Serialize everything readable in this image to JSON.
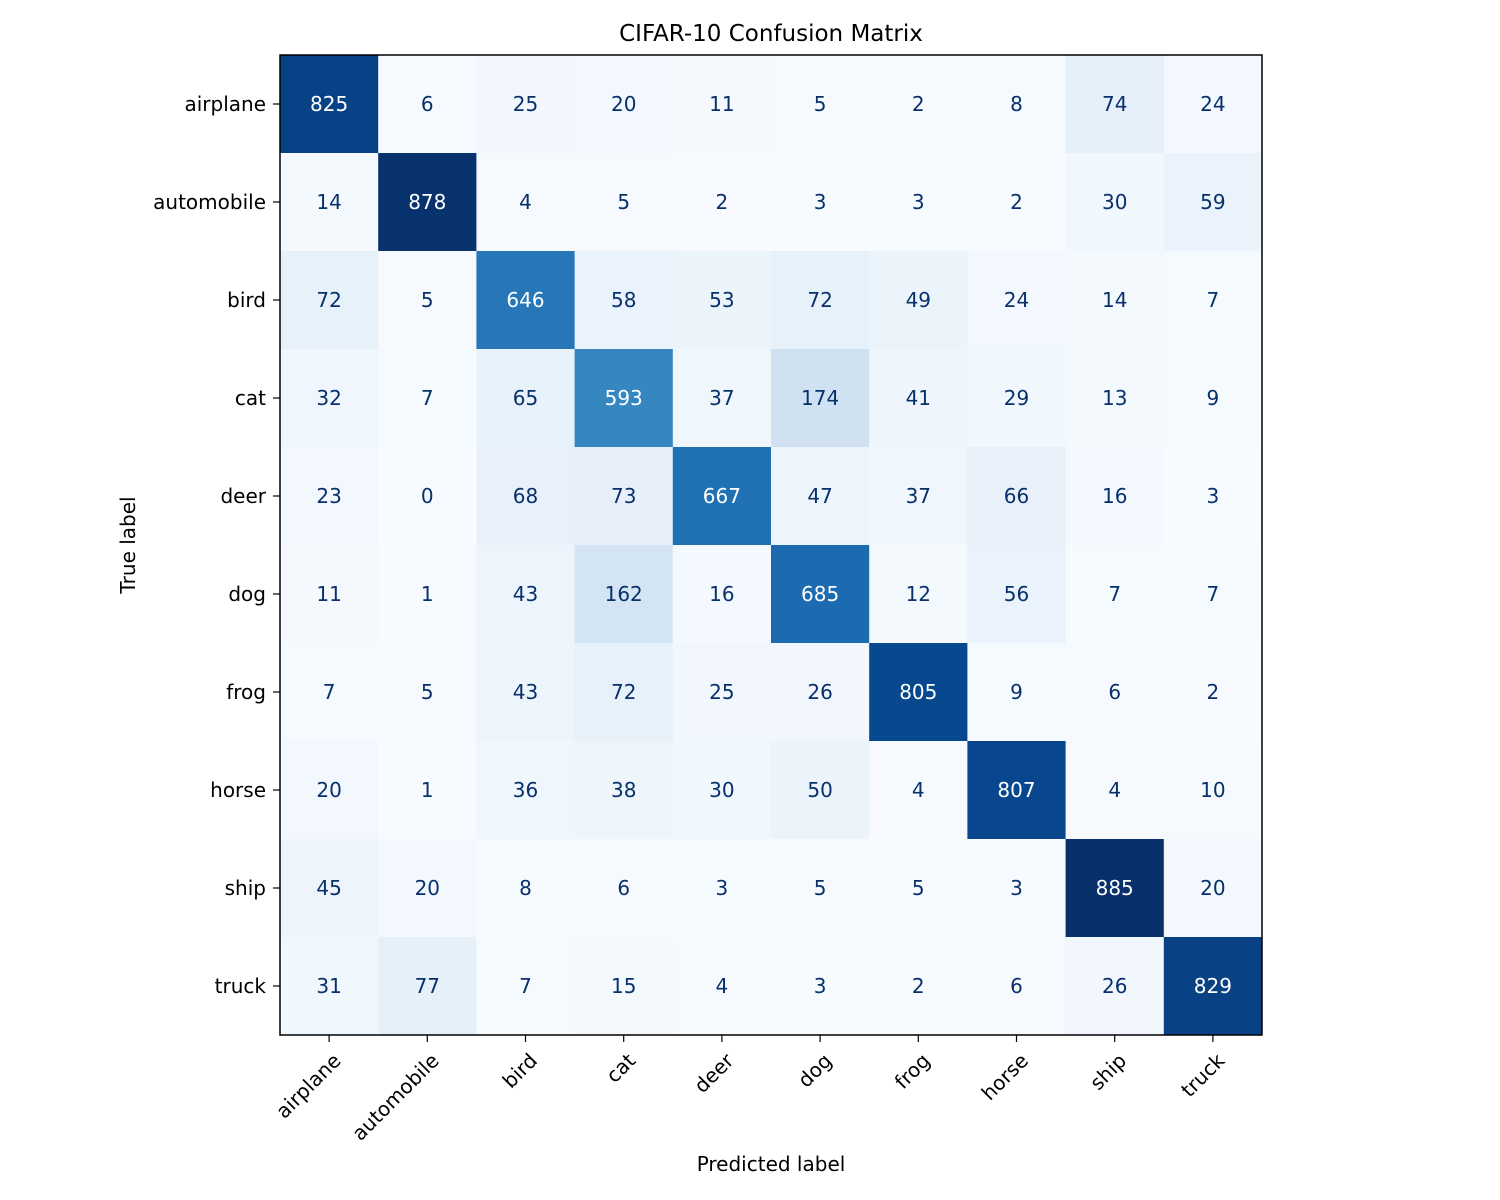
{
  "chart_data": {
    "type": "heatmap",
    "title": "CIFAR-10 Confusion Matrix",
    "xlabel": "Predicted label",
    "ylabel": "True label",
    "x_categories": [
      "airplane",
      "automobile",
      "bird",
      "cat",
      "deer",
      "dog",
      "frog",
      "horse",
      "ship",
      "truck"
    ],
    "y_categories": [
      "airplane",
      "automobile",
      "bird",
      "cat",
      "deer",
      "dog",
      "frog",
      "horse",
      "ship",
      "truck"
    ],
    "values": [
      [
        825,
        6,
        25,
        20,
        11,
        5,
        2,
        8,
        74,
        24
      ],
      [
        14,
        878,
        4,
        5,
        2,
        3,
        3,
        2,
        30,
        59
      ],
      [
        72,
        5,
        646,
        58,
        53,
        72,
        49,
        24,
        14,
        7
      ],
      [
        32,
        7,
        65,
        593,
        37,
        174,
        41,
        29,
        13,
        9
      ],
      [
        23,
        0,
        68,
        73,
        667,
        47,
        37,
        66,
        16,
        3
      ],
      [
        11,
        1,
        43,
        162,
        16,
        685,
        12,
        56,
        7,
        7
      ],
      [
        7,
        5,
        43,
        72,
        25,
        26,
        805,
        9,
        6,
        2
      ],
      [
        20,
        1,
        36,
        38,
        30,
        50,
        4,
        807,
        4,
        10
      ],
      [
        45,
        20,
        8,
        6,
        3,
        5,
        5,
        3,
        885,
        20
      ],
      [
        31,
        77,
        7,
        15,
        4,
        3,
        2,
        6,
        26,
        829
      ]
    ],
    "colormap": "Blues",
    "color_range": [
      0,
      885
    ],
    "text_color_dark": "#08306b",
    "text_color_light": "#ffffff",
    "grid": false,
    "legend": "none"
  }
}
